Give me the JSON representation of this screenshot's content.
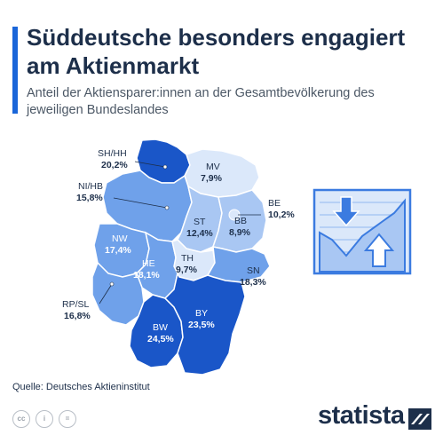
{
  "title": "Süddeutsche besonders engagiert am Aktienmarkt",
  "subtitle": "Anteil der Aktiensparer:innen an der Gesamtbevölkerung des jeweiligen Bundeslandes",
  "source": "Quelle: Deutsches Aktieninstitut",
  "brand": "statista",
  "license_icons": [
    "cc",
    "i",
    "="
  ],
  "colors": {
    "darkest": "#1a56c8",
    "dark": "#3b7be0",
    "mid": "#6fa1ea",
    "light": "#a9c7f3",
    "lightest": "#dbe8fa",
    "accent": "#1a66d9",
    "text": "#1d2f4a"
  },
  "regions": [
    {
      "code": "SH/HH",
      "value": "20,2%"
    },
    {
      "code": "MV",
      "value": "7,9%"
    },
    {
      "code": "NI/HB",
      "value": "15,8%"
    },
    {
      "code": "BE",
      "value": "10,2%"
    },
    {
      "code": "ST",
      "value": "12,4%"
    },
    {
      "code": "BB",
      "value": "8,9%"
    },
    {
      "code": "NW",
      "value": "17,4%"
    },
    {
      "code": "TH",
      "value": "9,7%"
    },
    {
      "code": "HE",
      "value": "18,1%"
    },
    {
      "code": "SN",
      "value": "18,3%"
    },
    {
      "code": "RP/SL",
      "value": "16,8%"
    },
    {
      "code": "BW",
      "value": "24,5%"
    },
    {
      "code": "BY",
      "value": "23,5%"
    }
  ],
  "decorative_icon": "stock-chart-up-down-icon"
}
